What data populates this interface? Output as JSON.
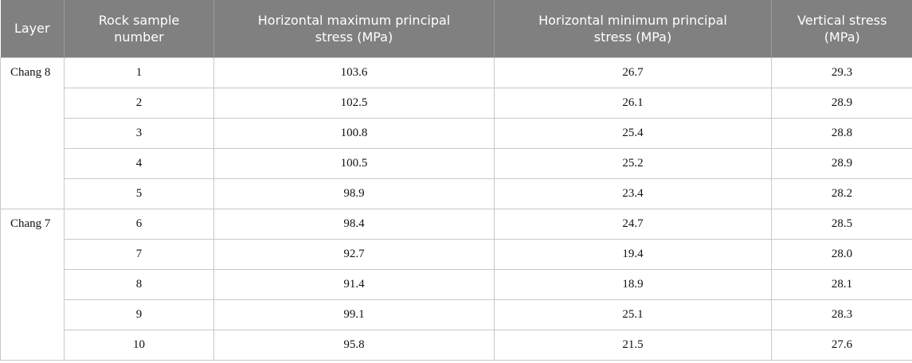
{
  "table": {
    "header": [
      "Layer",
      "Rock sample number",
      "Horizontal maximum principal stress (MPa)",
      "Horizontal minimum principal stress (MPa)",
      "Vertical stress (MPa)"
    ],
    "groups": [
      {
        "layer": "Chang 8",
        "rows": [
          [
            "1",
            "103.6",
            "26.7",
            "29.3"
          ],
          [
            "2",
            "102.5",
            "26.1",
            "28.9"
          ],
          [
            "3",
            "100.8",
            "25.4",
            "28.8"
          ],
          [
            "4",
            "100.5",
            "25.2",
            "28.9"
          ],
          [
            "5",
            "98.9",
            "23.4",
            "28.2"
          ]
        ]
      },
      {
        "layer": "Chang 7",
        "rows": [
          [
            "6",
            "98.4",
            "24.7",
            "28.5"
          ],
          [
            "7",
            "92.7",
            "19.4",
            "28.0"
          ],
          [
            "8",
            "91.4",
            "18.9",
            "28.1"
          ],
          [
            "9",
            "99.1",
            "25.1",
            "28.3"
          ],
          [
            "10",
            "95.8",
            "21.5",
            "27.6"
          ]
        ]
      }
    ]
  }
}
